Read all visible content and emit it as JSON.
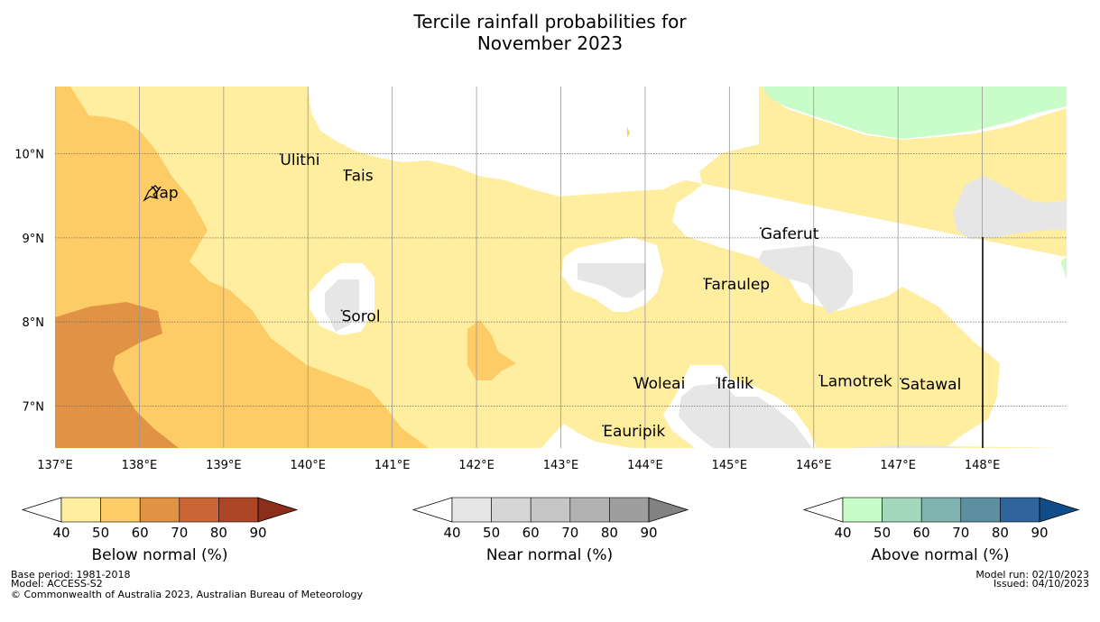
{
  "title": {
    "line1": "Tercile rainfall probabilities for",
    "line2": "November 2023"
  },
  "map": {
    "lon_range": [
      137,
      149
    ],
    "lat_range": [
      6.5,
      10.8
    ],
    "x_ticks": [
      {
        "lon": 137,
        "label": "137°E"
      },
      {
        "lon": 138,
        "label": "138°E"
      },
      {
        "lon": 139,
        "label": "139°E"
      },
      {
        "lon": 140,
        "label": "140°E"
      },
      {
        "lon": 141,
        "label": "141°E"
      },
      {
        "lon": 142,
        "label": "142°E"
      },
      {
        "lon": 143,
        "label": "143°E"
      },
      {
        "lon": 144,
        "label": "144°E"
      },
      {
        "lon": 145,
        "label": "145°E"
      },
      {
        "lon": 146,
        "label": "146°E"
      },
      {
        "lon": 147,
        "label": "147°E"
      },
      {
        "lon": 148,
        "label": "148°E"
      }
    ],
    "y_ticks": [
      {
        "lat": 10,
        "label": "10°N"
      },
      {
        "lat": 9,
        "label": "9°N"
      },
      {
        "lat": 8,
        "label": "8°N"
      },
      {
        "lat": 7,
        "label": "7°N"
      }
    ],
    "places": [
      {
        "name": "Yap",
        "lon": 138.15,
        "lat": 9.52
      },
      {
        "name": "Ulithi",
        "lon": 139.67,
        "lat": 9.91
      },
      {
        "name": "Fais",
        "lon": 140.43,
        "lat": 9.72
      },
      {
        "name": "Gaferut",
        "lon": 145.37,
        "lat": 9.03
      },
      {
        "name": "Faraulep",
        "lon": 144.7,
        "lat": 8.43
      },
      {
        "name": "Sorol",
        "lon": 140.4,
        "lat": 8.05
      },
      {
        "name": "Woleai",
        "lon": 143.87,
        "lat": 7.25
      },
      {
        "name": "Ifalik",
        "lon": 144.85,
        "lat": 7.25
      },
      {
        "name": "Lamotrek",
        "lon": 146.07,
        "lat": 7.28
      },
      {
        "name": "Satawal",
        "lon": 147.03,
        "lat": 7.24
      },
      {
        "name": "Eauripik",
        "lon": 143.5,
        "lat": 6.68
      }
    ],
    "colors": {
      "below_40_50": "#ffeda0",
      "below_50_60": "#fecc66",
      "below_60_70": "#e09245",
      "near_40_50": "#e6e6e6",
      "above_40_50": "#c8fcc8",
      "white": "#ffffff"
    }
  },
  "colorbars": [
    {
      "label": "Below normal (%)",
      "ticks": [
        "40",
        "50",
        "60",
        "70",
        "80",
        "90"
      ],
      "colors": [
        "#ffeda0",
        "#fecc66",
        "#e09245",
        "#cc6636",
        "#ac4626",
        "#8c2e1a"
      ]
    },
    {
      "label": "Near normal (%)",
      "ticks": [
        "40",
        "50",
        "60",
        "70",
        "80",
        "90"
      ],
      "colors": [
        "#e6e6e6",
        "#d6d6d6",
        "#c6c6c6",
        "#b2b2b2",
        "#9e9e9e",
        "#828282"
      ]
    },
    {
      "label": "Above normal (%)",
      "ticks": [
        "40",
        "50",
        "60",
        "70",
        "80",
        "90"
      ],
      "colors": [
        "#c8fcc8",
        "#a4d8bc",
        "#80b4b0",
        "#5c90a0",
        "#30649a",
        "#104c8a"
      ]
    }
  ],
  "footer": {
    "base_period": "Base period: 1981-2018",
    "model": "Model: ACCESS-S2",
    "copyright": "© Commonwealth of Australia 2023, Australian Bureau of Meteorology",
    "model_run": "Model run: 02/10/2023",
    "issued": "Issued: 04/10/2023"
  }
}
